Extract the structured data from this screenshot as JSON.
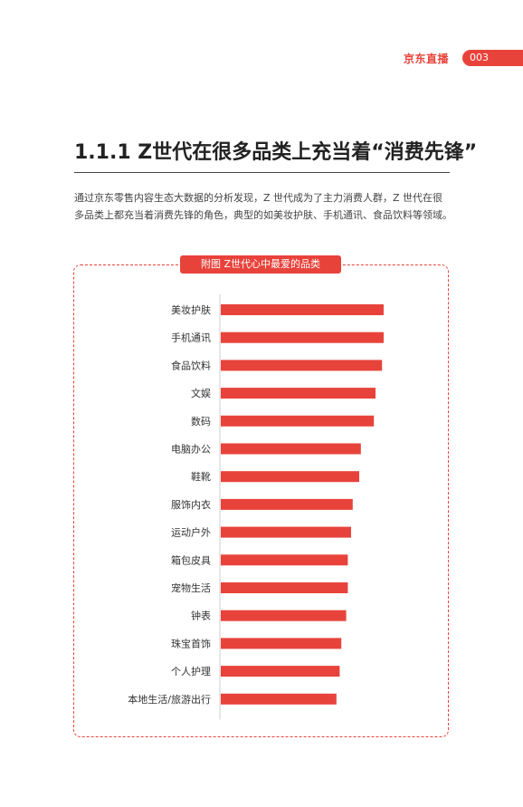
{
  "header": {
    "brand": "京东直播",
    "page_number": "003"
  },
  "section": {
    "title": "1.1.1 Z世代在很多品类上充当着“消费先锋”",
    "intro": "通过京东零售内容生态大数据的分析发现，Z 世代成为了主力消费人群，Z 世代在很多品类上都充当着消费先锋的角色，典型的如美妆护肤、手机通讯、食品饮料等领域。"
  },
  "colors": {
    "accent": "#e8433b"
  },
  "chart_data": {
    "type": "bar",
    "orientation": "horizontal",
    "title": "附图 Z世代心中最爱的品类",
    "categories": [
      "美妆护肤",
      "手机通讯",
      "食品饮料",
      "文娱",
      "数码",
      "电脑办公",
      "鞋靴",
      "服饰内衣",
      "运动户外",
      "箱包皮具",
      "宠物生活",
      "钟表",
      "珠宝首饰",
      "个人护理",
      "本地生活/旅游出行"
    ],
    "values": [
      100,
      100,
      99,
      95,
      94,
      86,
      85,
      81,
      80,
      78,
      78,
      77,
      74,
      73,
      71
    ],
    "xlim": [
      0,
      100
    ],
    "grid": false,
    "legend": "none"
  }
}
